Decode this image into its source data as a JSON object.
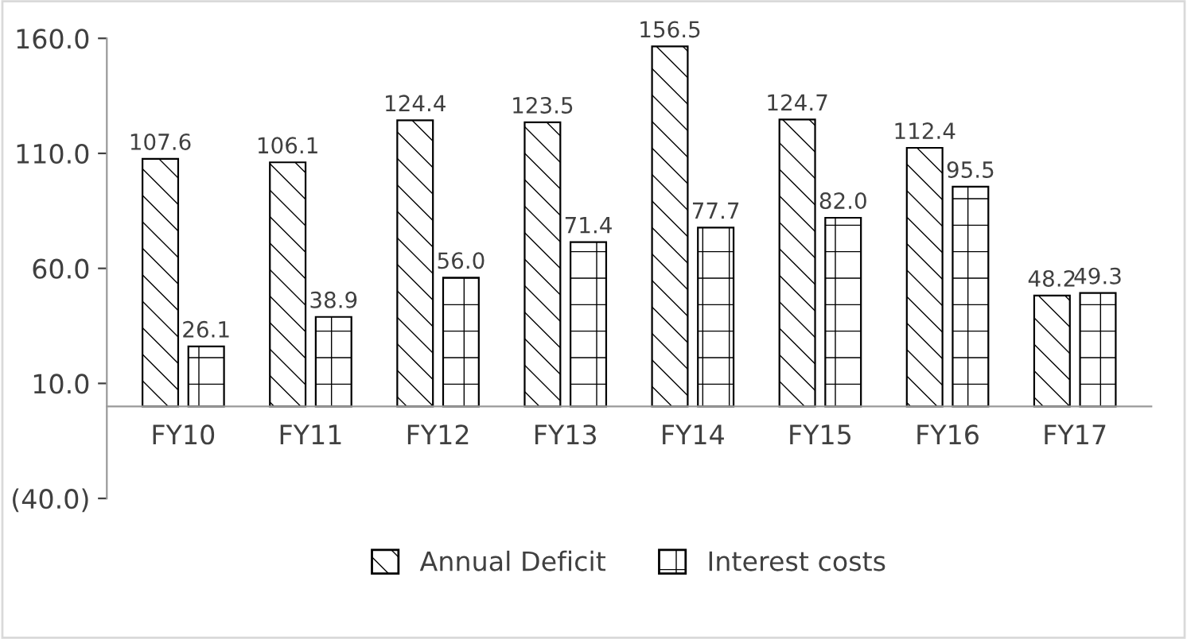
{
  "chart_data": {
    "type": "bar",
    "categories": [
      "FY10",
      "FY11",
      "FY12",
      "FY13",
      "FY14",
      "FY15",
      "FY16",
      "FY17"
    ],
    "series": [
      {
        "name": "Annual Deficit",
        "color": "#000000",
        "values": [
          107.6,
          106.1,
          124.4,
          123.5,
          156.5,
          124.7,
          112.4,
          48.2
        ],
        "value_labels": [
          "107.6",
          "106.1",
          "124.4",
          "123.5",
          "156.5",
          "124.7",
          "112.4",
          "48.2"
        ]
      },
      {
        "name": "Interest costs",
        "color": "#000000",
        "values": [
          26.1,
          38.9,
          56.0,
          71.4,
          77.7,
          82.0,
          95.5,
          49.3
        ],
        "value_labels": [
          "26.1",
          "38.9",
          "56.0",
          "71.4",
          "77.7",
          "82.0",
          "95.5",
          "49.3"
        ]
      }
    ],
    "ylim": [
      -40,
      160
    ],
    "yticks": [
      {
        "value": -40,
        "label": "(40.0)"
      },
      {
        "value": 10,
        "label": "10.0"
      },
      {
        "value": 60,
        "label": "60.0"
      },
      {
        "value": 110,
        "label": "110.0"
      },
      {
        "value": 160,
        "label": "160.0"
      }
    ],
    "grid": false,
    "legend": "bottom"
  }
}
